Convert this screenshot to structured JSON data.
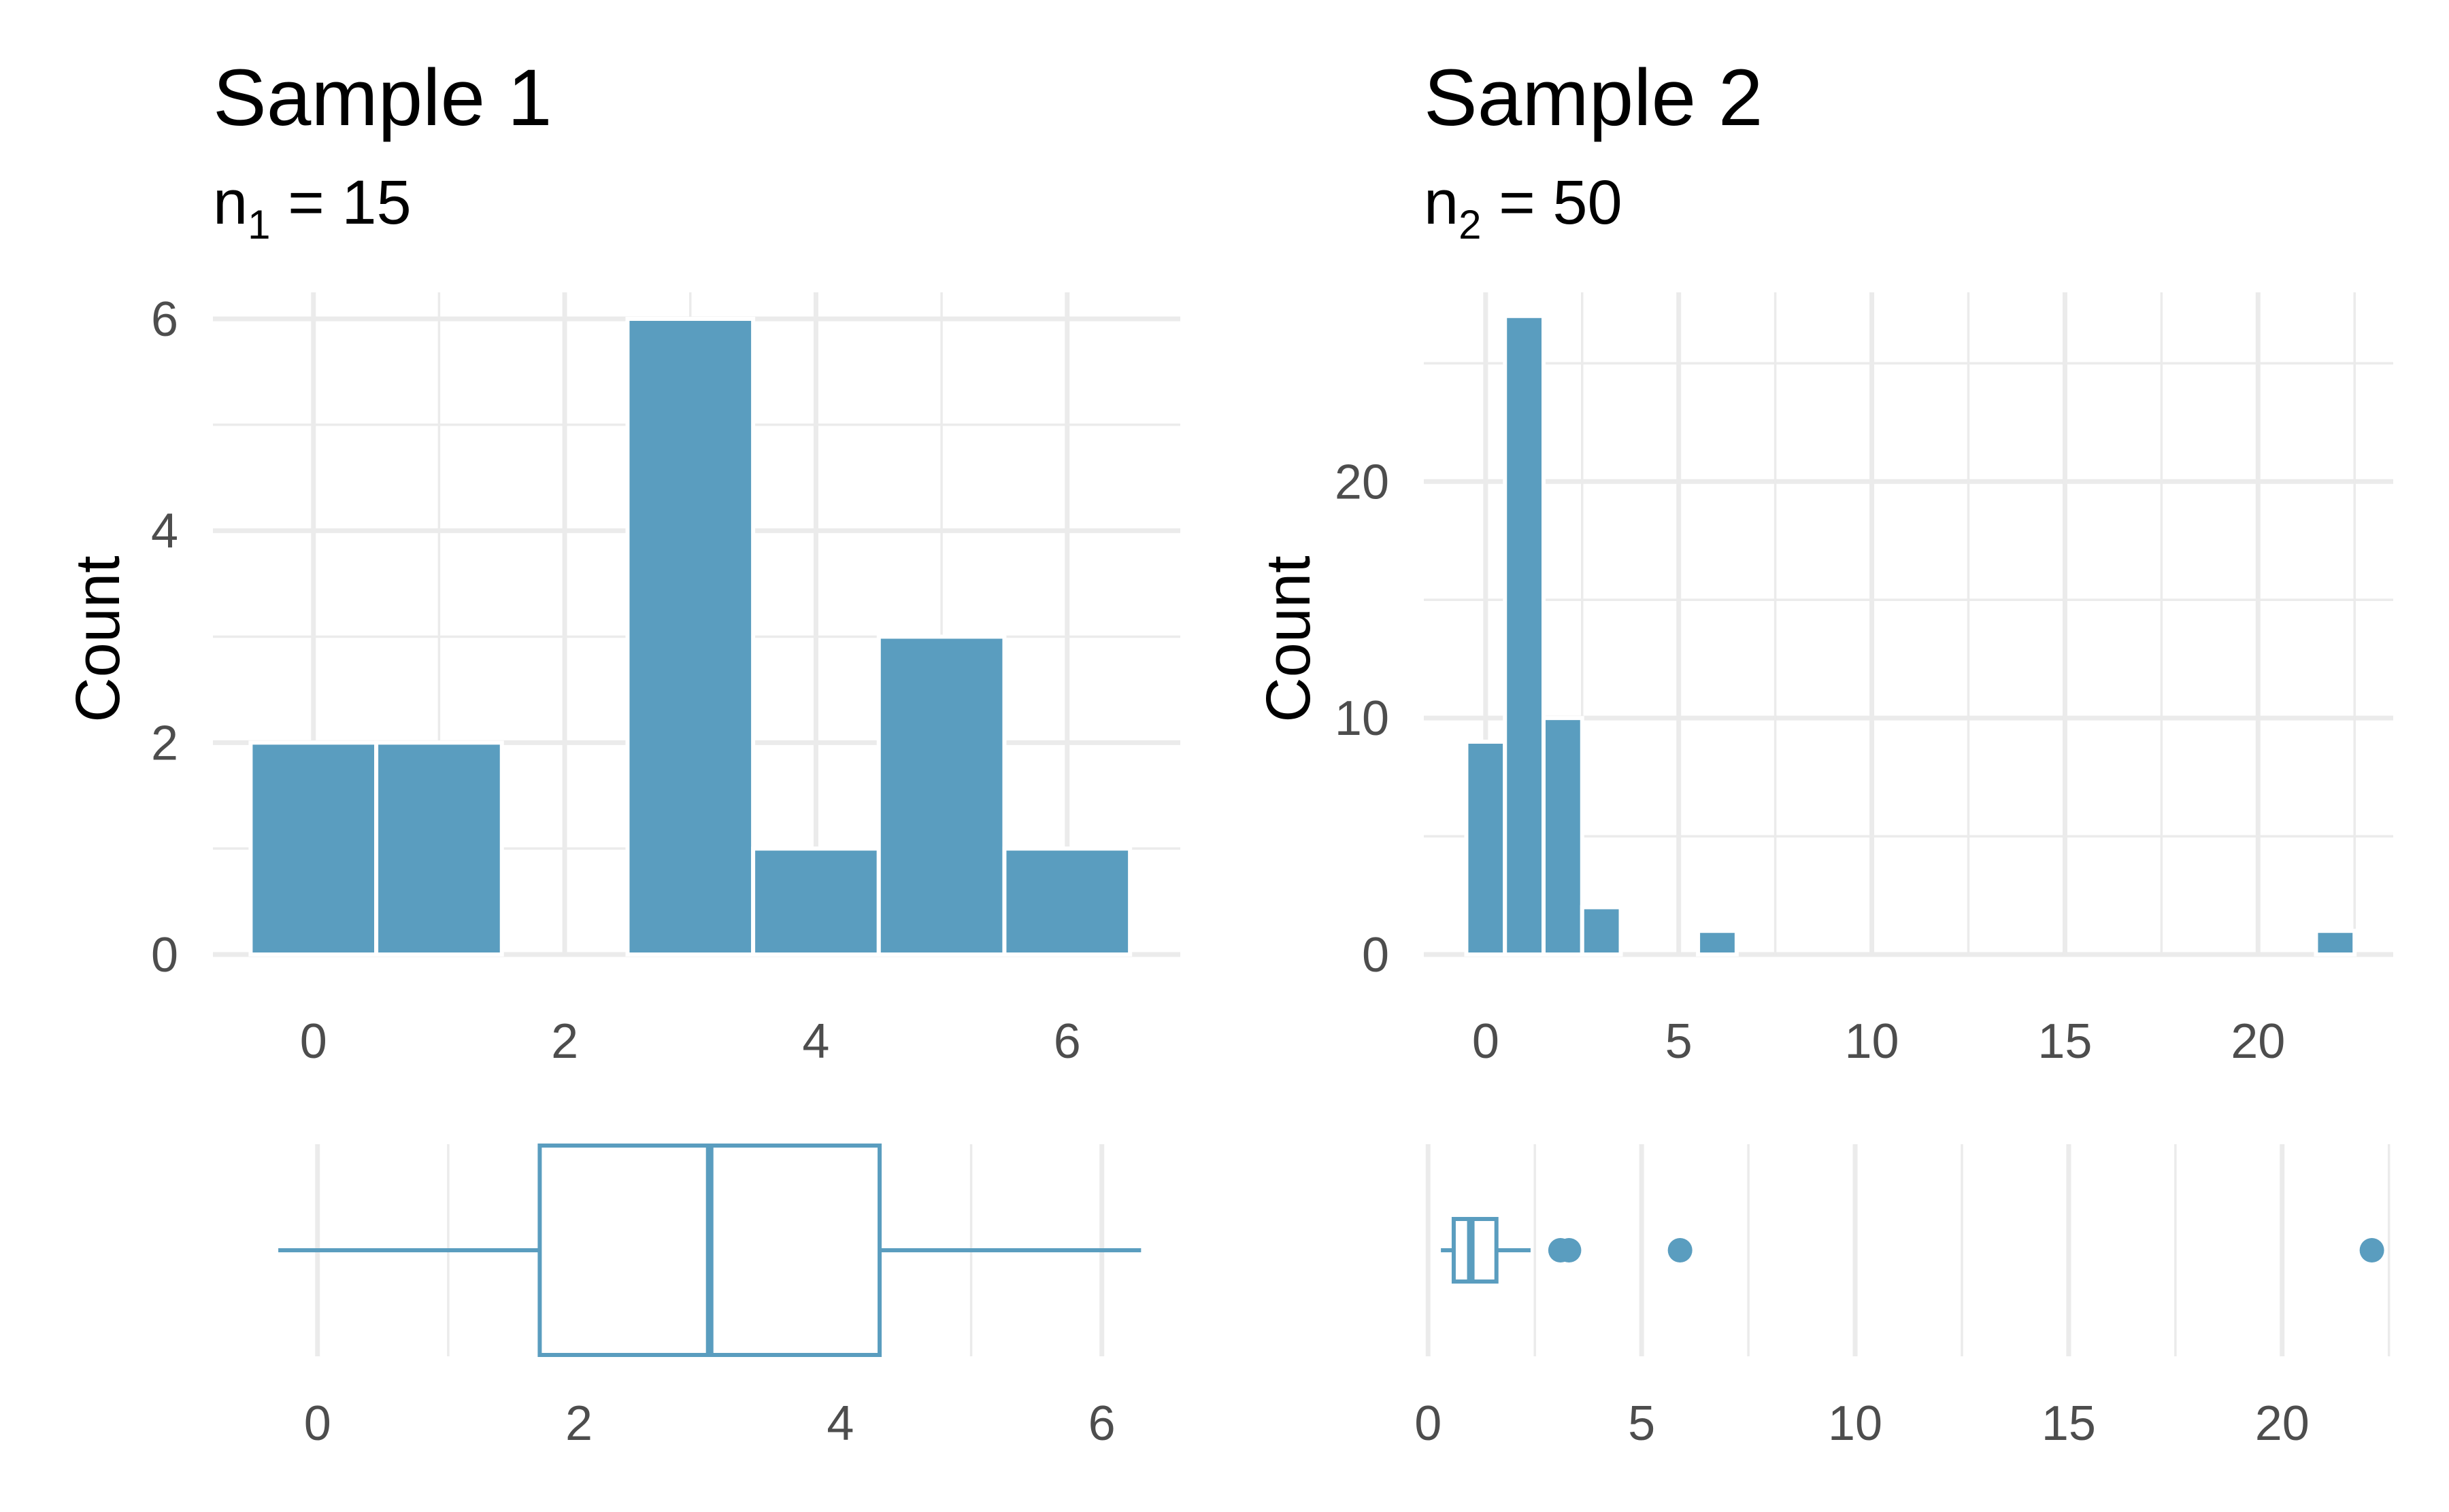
{
  "colors": {
    "bar": "#5a9dbf",
    "grid": "#ebebeb",
    "tick_text": "#4d4d4d"
  },
  "chart_data": [
    {
      "type": "bar",
      "title": "Sample 1",
      "subtitle": {
        "prefix": "n",
        "sub": "1",
        "suffix": " = 15"
      },
      "ylabel": "Count",
      "x": [
        0,
        1,
        2,
        3,
        4,
        5,
        6
      ],
      "values": [
        2,
        2,
        0,
        6,
        1,
        3,
        1
      ],
      "bin_width": 1,
      "xlim": [
        -0.8,
        6.9
      ],
      "ylim": [
        0,
        6.25
      ],
      "xticks": [
        0,
        2,
        4,
        6
      ],
      "yticks": [
        0,
        2,
        4,
        6
      ],
      "grid": true,
      "boxplot": {
        "min": -0.3,
        "q1": 1.7,
        "median": 3.0,
        "q3": 4.3,
        "max": 6.3,
        "outliers": [],
        "xlim": [
          -0.8,
          6.6
        ],
        "xticks": [
          0,
          2,
          4,
          6
        ]
      }
    },
    {
      "type": "bar",
      "title": "Sample 2",
      "subtitle": {
        "prefix": "n",
        "sub": "2",
        "suffix": " = 50"
      },
      "ylabel": "Count",
      "x": [
        0,
        1,
        2,
        3,
        4,
        5,
        6,
        7,
        8,
        9,
        10,
        11,
        12,
        13,
        14,
        15,
        16,
        17,
        18,
        19,
        20,
        21,
        22
      ],
      "values": [
        9,
        27,
        10,
        2,
        0,
        0,
        1,
        0,
        0,
        0,
        0,
        0,
        0,
        0,
        0,
        0,
        0,
        0,
        0,
        0,
        0,
        0,
        1
      ],
      "bin_width": 1,
      "xlim": [
        -1.6,
        23.5
      ],
      "ylim": [
        0,
        28
      ],
      "xticks": [
        0,
        5,
        10,
        15,
        20
      ],
      "yticks": [
        0,
        10,
        20
      ],
      "grid": true,
      "boxplot": {
        "min": 0.3,
        "q1": 0.6,
        "median": 1.0,
        "q3": 1.6,
        "max": 2.4,
        "outliers": [
          3.1,
          3.3,
          5.9,
          22.1
        ],
        "xlim": [
          -0.1,
          22.6
        ],
        "xticks": [
          0,
          5,
          10,
          15,
          20
        ]
      }
    }
  ]
}
